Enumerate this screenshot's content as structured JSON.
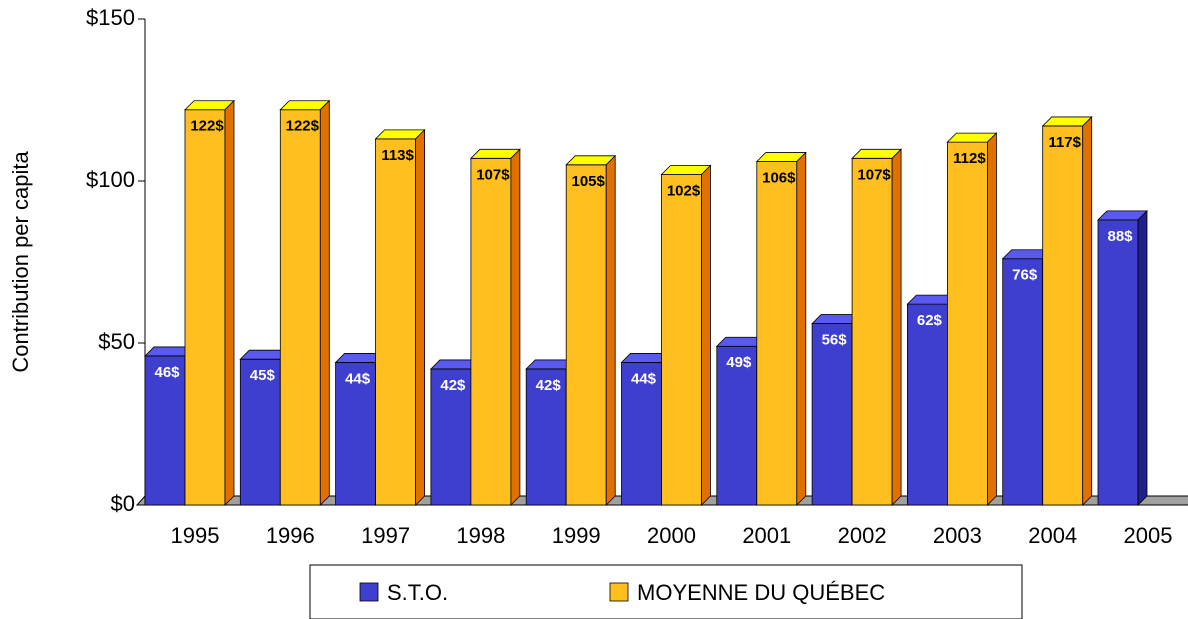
{
  "chart_data": {
    "type": "bar3d",
    "y_label": "Contribution per capita",
    "categories": [
      "1995",
      "1996",
      "1997",
      "1998",
      "1999",
      "2000",
      "2001",
      "2002",
      "2003",
      "2004",
      "2005"
    ],
    "series": [
      {
        "name": "S.T.O.",
        "color": "#3f3fcf",
        "values": [
          46,
          45,
          44,
          42,
          42,
          44,
          49,
          56,
          62,
          76,
          88
        ],
        "value_labels": [
          "46$",
          "45$",
          "44$",
          "42$",
          "42$",
          "44$",
          "49$",
          "56$",
          "62$",
          "76$",
          "88$"
        ]
      },
      {
        "name": "MOYENNE DU QUÉBEC",
        "color": "#ffbf1f",
        "values": [
          122,
          122,
          113,
          107,
          105,
          102,
          106,
          107,
          112,
          117,
          null
        ],
        "value_labels": [
          "122$",
          "122$",
          "113$",
          "107$",
          "105$",
          "102$",
          "106$",
          "107$",
          "112$",
          "117$",
          null
        ]
      }
    ],
    "ylim": [
      0,
      150
    ],
    "yticks": [
      {
        "value": 0,
        "label": "$0"
      },
      {
        "value": 50,
        "label": "$50"
      },
      {
        "value": 100,
        "label": "$100"
      },
      {
        "value": 150,
        "label": "$150"
      }
    ]
  }
}
